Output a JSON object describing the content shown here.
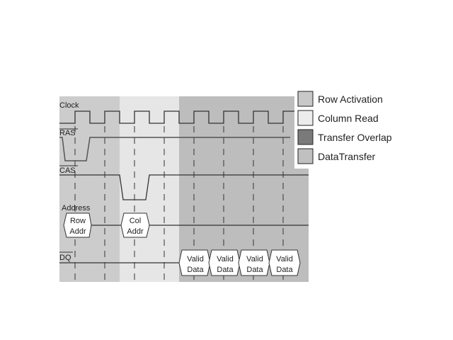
{
  "signals": {
    "clock": "Clock",
    "ras": "RAS",
    "cas": "CAS",
    "address": "Address",
    "dq": "DQ"
  },
  "address_boxes": [
    {
      "line1": "Row",
      "line2": "Addr"
    },
    {
      "line1": "Col",
      "line2": "Addr"
    }
  ],
  "dq_boxes": [
    {
      "line1": "Valid",
      "line2": "Data"
    },
    {
      "line1": "Valid",
      "line2": "Data"
    },
    {
      "line1": "Valid",
      "line2": "Data"
    },
    {
      "line1": "Valid",
      "line2": "Data"
    }
  ],
  "legend": [
    {
      "label": "Row Activation",
      "color": "#c8c8c8"
    },
    {
      "label": "Column Read",
      "color": "#ececec"
    },
    {
      "label": "Transfer Overlap",
      "color": "#7a7a7a"
    },
    {
      "label": "DataTransfer",
      "color": "#c0c0c0"
    }
  ],
  "colors": {
    "phase_row": "#cccccc",
    "phase_col": "#e6e6e6",
    "phase_data": "#bdbdbd",
    "line": "#333333"
  }
}
